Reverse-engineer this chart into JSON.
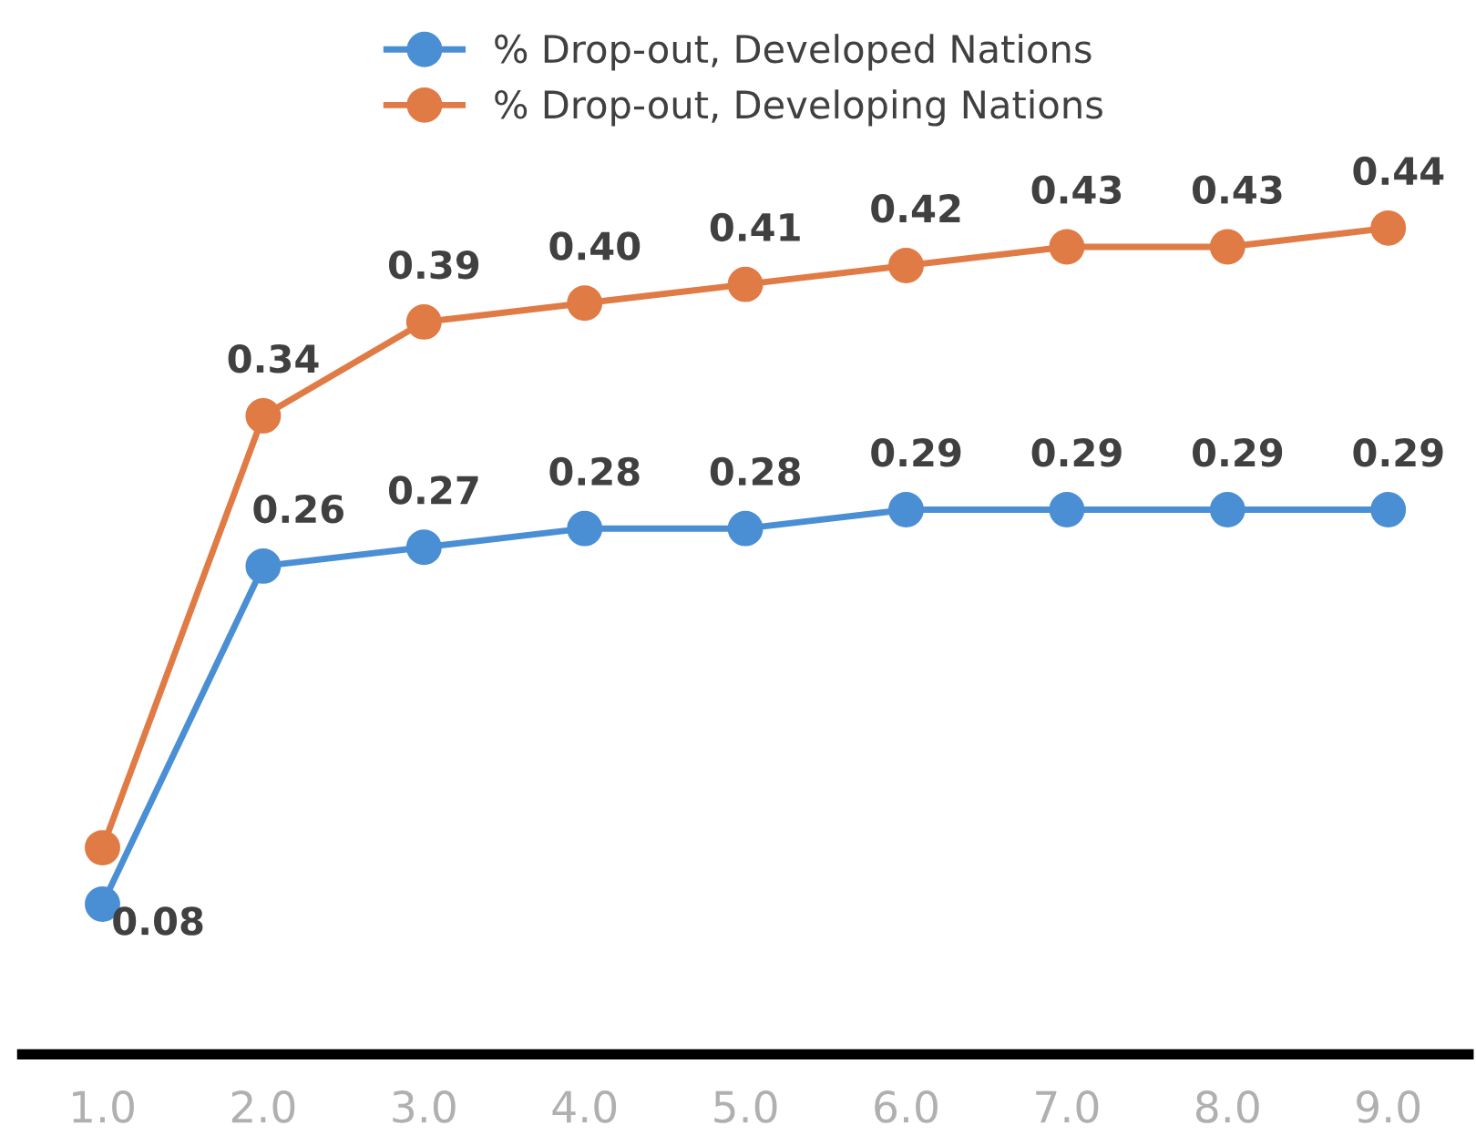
{
  "chart_data": {
    "type": "line",
    "x": [
      1,
      2,
      3,
      4,
      5,
      6,
      7,
      8,
      9
    ],
    "xlim": [
      0.5,
      9.5
    ],
    "xticks": [
      {
        "value": 1,
        "label": "1.0"
      },
      {
        "value": 2,
        "label": "2.0"
      },
      {
        "value": 3,
        "label": "3.0"
      },
      {
        "value": 4,
        "label": "4.0"
      },
      {
        "value": 5,
        "label": "5.0"
      },
      {
        "value": 6,
        "label": "6.0"
      },
      {
        "value": 7,
        "label": "7.0"
      },
      {
        "value": 8,
        "label": "8.0"
      },
      {
        "value": 9,
        "label": "9.0"
      }
    ],
    "tick_labels": "x",
    "series": [
      {
        "name": "% Drop-out, Developed Nations",
        "color": "#4a8fd4",
        "values": [
          0.08,
          0.26,
          0.27,
          0.28,
          0.28,
          0.29,
          0.29,
          0.29,
          0.29
        ],
        "value_labels": [
          "0.08",
          "0.26",
          "0.27",
          "0.28",
          "0.28",
          "0.29",
          "0.29",
          "0.29",
          "0.29"
        ]
      },
      {
        "name": "% Drop-out, Developing Nations",
        "color": "#e07b45",
        "values": [
          0.11,
          0.34,
          0.39,
          0.4,
          0.41,
          0.42,
          0.43,
          0.43,
          0.44
        ],
        "value_labels": [
          null,
          "0.34",
          "0.39",
          "0.40",
          "0.41",
          "0.42",
          "0.43",
          "0.43",
          "0.44"
        ]
      }
    ],
    "marker": "circle",
    "line_style": "solid",
    "legend": "top",
    "grid": false
  }
}
